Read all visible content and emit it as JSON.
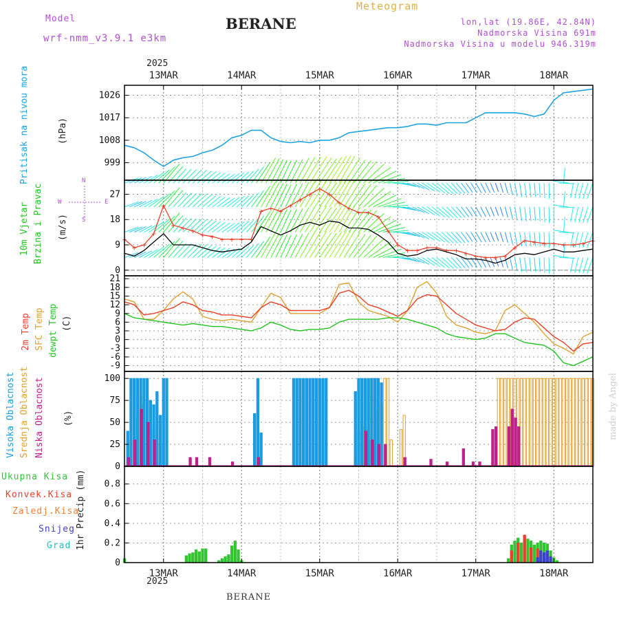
{
  "header": {
    "model_label": "Model",
    "model_name": "wrf-nmm_v3.9.1 e3km",
    "station": "BERANE",
    "product": "Meteogram",
    "coords": "lon,lat (19.86E, 42.84N)",
    "altitude": "Nadmorska Visina 691m",
    "model_altitude": "Nadmorska Visina u modelu 946.319m",
    "footer_station": "BERANE",
    "watermark": "made by Angel",
    "year": "2025"
  },
  "colors": {
    "pressure": "#1fa3e0",
    "wind_speed": "#000000",
    "gust": "#e8402a",
    "t2m": "#e8402a",
    "sfc": "#e0a030",
    "dewpt": "#22c422",
    "high_cloud": "#1b9be0",
    "mid_cloud": "#e0a030",
    "low_cloud": "#c0208a",
    "total_precip": "#33c433",
    "conv_precip": "#e8402a",
    "frozen_precip": "#f08030",
    "snow": "#4040d0",
    "hail": "#20c0c0",
    "purple_text": "#b050d0",
    "orange_text": "#e0b040"
  },
  "time_axis": {
    "start_hour": 0,
    "end_hour": 144,
    "day_labels": [
      "13MAR",
      "14MAR",
      "15MAR",
      "16MAR",
      "17MAR",
      "18MAR"
    ],
    "day_hours": [
      12,
      36,
      60,
      84,
      108,
      132
    ]
  },
  "panels": {
    "pressure": {
      "label": "Pritisak na nivou mora",
      "unit": "(hPa)",
      "ticks": [
        "999",
        "1008",
        "1017",
        "1026"
      ],
      "ylim": [
        992,
        1030
      ]
    },
    "wind": {
      "label1": "10m Vjetar",
      "label2": "Brzina i Pravac",
      "unit": "(m/s)",
      "ticks": [
        "0",
        "9",
        "18",
        "27"
      ],
      "ylim": [
        -2,
        32
      ],
      "compass_n": "N",
      "compass_s": "S",
      "compass_w": "W",
      "compass_e": "E"
    },
    "temp": {
      "label_t2m": "2m Temp",
      "label_sfc": "SFC Temp",
      "label_dew": "dewpt Temp",
      "unit": "(C)",
      "ticks": [
        "-9",
        "-6",
        "-3",
        "0",
        "3",
        "6",
        "9",
        "12",
        "15",
        "18",
        "21"
      ],
      "ylim": [
        -11,
        22
      ]
    },
    "cloud": {
      "label_high": "Visoka Oblacnost",
      "label_mid": "Srednja Oblacnost",
      "label_low": "Niska Oblacnost",
      "unit": "(%)",
      "ticks": [
        "0",
        "25",
        "50",
        "75",
        "100"
      ],
      "ylim": [
        0,
        108
      ]
    },
    "precip": {
      "legend": [
        "Ukupna Kisa",
        "Konvek.Kisa",
        "Zaledj.Kisa",
        "Snijeg",
        "Grad"
      ],
      "unit": "1hr Precip (mm)",
      "ticks": [
        "0",
        "0.2",
        "0.4",
        "0.6",
        "0.8"
      ],
      "ylim": [
        0,
        0.98
      ]
    }
  },
  "chart_data": {
    "type": "line",
    "title": "BERANE Meteogram",
    "x_unit": "hours from 12 Mar 12Z",
    "pressure_hpa": {
      "x": [
        0,
        3,
        6,
        9,
        12,
        15,
        18,
        21,
        24,
        27,
        30,
        33,
        36,
        39,
        42,
        45,
        48,
        51,
        54,
        57,
        60,
        63,
        66,
        69,
        72,
        75,
        78,
        81,
        84,
        87,
        90,
        93,
        96,
        99,
        102,
        105,
        108,
        111,
        114,
        117,
        120,
        123,
        126,
        129,
        132,
        135,
        138,
        141,
        144
      ],
      "y": [
        1006,
        1005,
        1003,
        1000,
        997.5,
        1000,
        1001,
        1001.5,
        1003,
        1004,
        1006,
        1009,
        1010,
        1012,
        1012,
        1009,
        1007.5,
        1007,
        1007.5,
        1007,
        1008,
        1008,
        1009,
        1011,
        1011.5,
        1012,
        1012.5,
        1013,
        1013,
        1013.5,
        1014.5,
        1014.5,
        1014,
        1015,
        1015,
        1015,
        1017,
        1019,
        1019,
        1019,
        1019,
        1018.5,
        1017.5,
        1018.5,
        1024,
        1027,
        1027.5,
        1028,
        1028.5
      ]
    },
    "wind_speed_ms": {
      "x": [
        0,
        3,
        6,
        9,
        12,
        15,
        18,
        21,
        24,
        27,
        30,
        33,
        36,
        39,
        42,
        45,
        48,
        51,
        54,
        57,
        60,
        63,
        66,
        69,
        72,
        75,
        78,
        81,
        84,
        87,
        90,
        93,
        96,
        99,
        102,
        105,
        108,
        111,
        114,
        117,
        120,
        123,
        126,
        129,
        132,
        135,
        138,
        141,
        144
      ],
      "y": [
        6,
        5,
        7,
        10,
        13,
        9,
        9,
        9,
        8,
        7,
        6.5,
        7,
        7.5,
        10,
        15.5,
        14,
        12.5,
        14,
        16,
        17,
        16,
        17.5,
        17,
        15,
        15,
        14.5,
        12.5,
        10,
        6,
        5,
        5.5,
        7,
        7.5,
        6.5,
        5.5,
        4,
        4,
        3.5,
        2.5,
        3.5,
        5.5,
        6,
        5.5,
        6.5,
        7.5,
        6.5,
        6.5,
        7,
        7.5
      ]
    },
    "gust_ms": {
      "x": [
        0,
        3,
        6,
        9,
        12,
        15,
        18,
        21,
        24,
        27,
        30,
        33,
        36,
        39,
        42,
        45,
        48,
        51,
        54,
        57,
        60,
        63,
        66,
        69,
        72,
        75,
        78,
        81,
        84,
        87,
        90,
        93,
        96,
        99,
        102,
        105,
        108,
        111,
        114,
        117,
        120,
        123,
        126,
        129,
        132,
        135,
        138,
        141,
        144
      ],
      "y": [
        11,
        8,
        9,
        13,
        23,
        16,
        15,
        14,
        12.5,
        12,
        11,
        11,
        11,
        11,
        21,
        22,
        21,
        23,
        25,
        27,
        29,
        27,
        24,
        22,
        20.5,
        20.5,
        19,
        14,
        9,
        7,
        7,
        8,
        8,
        7,
        7,
        6,
        5,
        4.5,
        4.5,
        5,
        8,
        10.5,
        10,
        9.5,
        9.5,
        9,
        9,
        9.5,
        10.5
      ]
    },
    "t2m_c": {
      "x": [
        0,
        3,
        6,
        9,
        12,
        15,
        18,
        21,
        24,
        27,
        30,
        33,
        36,
        39,
        42,
        45,
        48,
        51,
        54,
        57,
        60,
        63,
        66,
        69,
        72,
        75,
        78,
        81,
        84,
        87,
        90,
        93,
        96,
        99,
        102,
        105,
        108,
        111,
        114,
        117,
        120,
        123,
        126,
        129,
        132,
        135,
        138,
        141,
        144
      ],
      "y": [
        13,
        12,
        8.5,
        9,
        10,
        11,
        13,
        12,
        10,
        9.5,
        8.5,
        8.5,
        8,
        7.5,
        11,
        13,
        12,
        10,
        10,
        10,
        10,
        11,
        16,
        17,
        15,
        12,
        11,
        9.5,
        8,
        10,
        14,
        15.5,
        15,
        12,
        9,
        7,
        5,
        4,
        3,
        3.5,
        6,
        7.5,
        7,
        4,
        1,
        -1,
        -4,
        -1.5,
        -1
      ]
    },
    "sfc_temp_c": {
      "x": [
        0,
        3,
        6,
        9,
        12,
        15,
        18,
        21,
        24,
        27,
        30,
        33,
        36,
        39,
        42,
        45,
        48,
        51,
        54,
        57,
        60,
        63,
        66,
        69,
        72,
        75,
        78,
        81,
        84,
        87,
        90,
        93,
        96,
        99,
        102,
        105,
        108,
        111,
        114,
        117,
        120,
        123,
        126,
        129,
        132,
        135,
        138,
        141,
        144
      ],
      "y": [
        14,
        13,
        7,
        7,
        10,
        14,
        16.5,
        14,
        8,
        7,
        6.5,
        7,
        6.5,
        6,
        11,
        16,
        14.5,
        9,
        9,
        9,
        9,
        11,
        19,
        19.5,
        13,
        10,
        9,
        8,
        6,
        10,
        18,
        20,
        16,
        8,
        5,
        4,
        2.5,
        2,
        3,
        10,
        12,
        9,
        6,
        2,
        -1.5,
        -3,
        -5,
        1,
        2.5
      ]
    },
    "dewpt_c": {
      "x": [
        0,
        3,
        6,
        9,
        12,
        15,
        18,
        21,
        24,
        27,
        30,
        33,
        36,
        39,
        42,
        45,
        48,
        51,
        54,
        57,
        60,
        63,
        66,
        69,
        72,
        75,
        78,
        81,
        84,
        87,
        90,
        93,
        96,
        99,
        102,
        105,
        108,
        111,
        114,
        117,
        120,
        123,
        126,
        129,
        132,
        135,
        138,
        141,
        144
      ],
      "y": [
        9,
        7.5,
        7,
        6.5,
        6,
        5.5,
        5,
        5.5,
        5,
        4.5,
        4.5,
        4,
        3.5,
        3,
        4,
        6,
        5,
        3.5,
        3,
        3.5,
        3.5,
        4,
        6,
        7,
        7,
        7,
        7,
        7.5,
        7.5,
        7,
        6,
        5,
        4,
        2,
        1,
        0.5,
        0,
        0.5,
        2,
        2,
        0.5,
        -1,
        -1.5,
        -2,
        -4,
        -8,
        -9,
        -7.5,
        -6
      ]
    },
    "wind_dir_deg": {
      "x": [
        0,
        6,
        12,
        18,
        24,
        30,
        36,
        42,
        48,
        54,
        60,
        66,
        72,
        78,
        84,
        90,
        96,
        102,
        108,
        114,
        120,
        126,
        132,
        138,
        144
      ],
      "y": [
        250,
        240,
        220,
        225,
        230,
        235,
        225,
        210,
        205,
        210,
        215,
        210,
        220,
        250,
        280,
        300,
        310,
        320,
        330,
        340,
        350,
        355,
        360,
        10,
        20
      ]
    },
    "high_cloud_pct": {
      "x": [
        1,
        2,
        3,
        4,
        5,
        6,
        7,
        8,
        9,
        10,
        11,
        12,
        13,
        40,
        41,
        42,
        52,
        53,
        54,
        55,
        56,
        57,
        58,
        59,
        60,
        61,
        62,
        71,
        72,
        73,
        74,
        75,
        76,
        77,
        78,
        79
      ],
      "y": [
        40,
        100,
        100,
        100,
        100,
        100,
        100,
        75,
        70,
        85,
        58,
        100,
        100,
        60,
        100,
        38,
        100,
        100,
        100,
        100,
        100,
        100,
        100,
        100,
        100,
        100,
        100,
        85,
        100,
        100,
        100,
        100,
        100,
        100,
        100,
        95
      ]
    },
    "mid_cloud_pct": {
      "x": [
        2,
        4,
        5,
        6,
        7,
        8,
        9,
        11,
        71,
        72,
        73,
        74,
        75,
        76,
        77,
        78,
        79,
        80,
        81,
        82,
        85,
        86,
        115,
        116,
        117,
        118,
        119,
        120,
        121,
        122,
        123,
        124,
        125,
        126,
        127,
        128,
        129,
        130,
        131,
        132,
        133,
        134,
        135,
        136,
        137,
        138,
        139,
        140,
        141,
        142,
        143,
        144
      ],
      "y": [
        30,
        55,
        80,
        72,
        50,
        35,
        42,
        25,
        15,
        40,
        50,
        45,
        30,
        100,
        100,
        65,
        70,
        100,
        100,
        30,
        42,
        58,
        100,
        100,
        100,
        100,
        100,
        100,
        100,
        100,
        100,
        100,
        100,
        100,
        100,
        100,
        100,
        100,
        100,
        100,
        100,
        100,
        100,
        100,
        100,
        100,
        100,
        100,
        100,
        100,
        100,
        100
      ]
    },
    "low_cloud_pct": {
      "x": [
        1,
        3,
        5,
        7,
        9,
        20,
        22,
        26,
        33,
        41,
        74,
        76,
        78,
        80,
        86,
        94,
        99,
        104,
        107,
        109,
        113,
        114,
        118,
        119,
        120,
        121
      ],
      "y": [
        10,
        30,
        65,
        50,
        30,
        10,
        10,
        10,
        5,
        10,
        40,
        30,
        25,
        25,
        10,
        8,
        5,
        20,
        5,
        5,
        42,
        45,
        45,
        65,
        55,
        45
      ]
    },
    "total_precip_mm": {
      "x": [
        0,
        19,
        20,
        21,
        22,
        23,
        24,
        25,
        29,
        30,
        31,
        32,
        33,
        34,
        35,
        36,
        118,
        119,
        120,
        121,
        122,
        123,
        124,
        125,
        126,
        127,
        128,
        129,
        130,
        131,
        132,
        133
      ],
      "y": [
        0.04,
        0.07,
        0.09,
        0.1,
        0.13,
        0.11,
        0.14,
        0.14,
        0.02,
        0.04,
        0.06,
        0.08,
        0.17,
        0.22,
        0.13,
        0.02,
        0.04,
        0.18,
        0.22,
        0.25,
        0.2,
        0.23,
        0.24,
        0.22,
        0.18,
        0.2,
        0.22,
        0.2,
        0.19,
        0.12,
        0.05,
        0.02
      ]
    },
    "conv_precip_mm": {
      "x": [
        119,
        121,
        123,
        125,
        127
      ],
      "y": [
        0.12,
        0.2,
        0.28,
        0.15,
        0.14
      ]
    },
    "snow_mm": {
      "x": [
        127,
        128,
        129,
        130,
        131
      ],
      "y": [
        0.05,
        0.12,
        0.1,
        0.12,
        0.06
      ]
    }
  }
}
